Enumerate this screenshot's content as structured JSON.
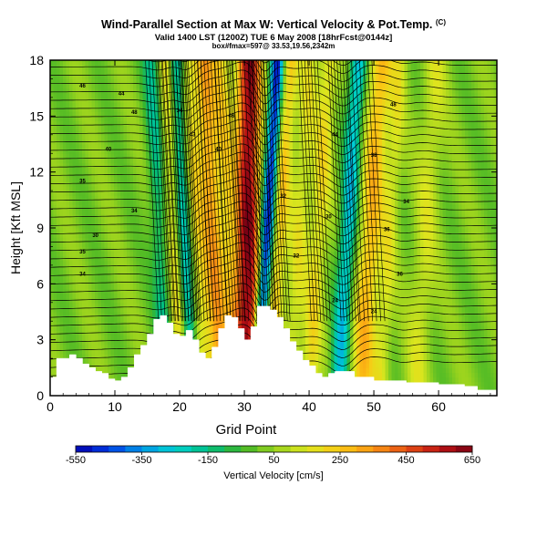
{
  "header": {
    "title": "Wind-Parallel Section at Max W: Vertical Velocity & Pot.Temp.",
    "title_mark": "(C)",
    "subtitle": "Valid 1400 LST (1200Z) TUE 6 May 2008 [18hrFcst@0144z]",
    "subtitle2": "box#fmax=597@ 33.53,19.56,2342m"
  },
  "chart_data": {
    "type": "heatmap",
    "xlabel": "Grid Point",
    "ylabel": "Height [Kft MSL]",
    "xlim": [
      0,
      69
    ],
    "ylim": [
      0,
      18
    ],
    "x_ticks": [
      "0",
      "10",
      "20",
      "30",
      "40",
      "50",
      "60"
    ],
    "y_ticks": [
      "0",
      "3",
      "6",
      "9",
      "12",
      "15",
      "18"
    ],
    "colorbar": {
      "label": "Vertical Velocity [cm/s]",
      "range": [
        -550,
        650
      ],
      "step": 50,
      "tick_labels": [
        "-550",
        "-350",
        "-150",
        "50",
        "250",
        "450",
        "650"
      ]
    },
    "terrain_height_kft": [
      [
        0,
        1.0
      ],
      [
        1,
        2.0
      ],
      [
        3,
        2.2
      ],
      [
        4,
        2.0
      ],
      [
        5,
        1.7
      ],
      [
        6,
        1.5
      ],
      [
        7,
        1.3
      ],
      [
        8,
        1.2
      ],
      [
        9,
        0.9
      ],
      [
        10,
        0.8
      ],
      [
        11,
        1.0
      ],
      [
        12,
        1.5
      ],
      [
        13,
        2.2
      ],
      [
        14,
        2.7
      ],
      [
        15,
        3.3
      ],
      [
        16,
        4.1
      ],
      [
        17,
        4.3
      ],
      [
        18,
        3.9
      ],
      [
        19,
        3.3
      ],
      [
        20,
        3.2
      ],
      [
        21,
        3.5
      ],
      [
        22,
        3.0
      ],
      [
        23,
        2.3
      ],
      [
        24,
        2.0
      ],
      [
        25,
        2.6
      ],
      [
        26,
        3.6
      ],
      [
        27,
        4.3
      ],
      [
        28,
        4.2
      ],
      [
        29,
        3.6
      ],
      [
        30,
        3.0
      ],
      [
        31,
        3.7
      ],
      [
        32,
        4.8
      ],
      [
        33,
        4.8
      ],
      [
        34,
        4.6
      ],
      [
        35,
        4.2
      ],
      [
        36,
        3.6
      ],
      [
        37,
        2.9
      ],
      [
        38,
        2.4
      ],
      [
        39,
        1.9
      ],
      [
        40,
        1.6
      ],
      [
        41,
        1.2
      ],
      [
        42,
        1.0
      ],
      [
        43,
        1.2
      ],
      [
        44,
        1.3
      ],
      [
        47,
        1.0
      ],
      [
        50,
        0.8
      ],
      [
        55,
        0.7
      ],
      [
        60,
        0.6
      ],
      [
        64,
        0.5
      ],
      [
        66,
        0.3
      ],
      [
        69,
        0.3
      ]
    ],
    "velocity_bands": [
      {
        "x": 17.5,
        "width": 1.5,
        "w": -200
      },
      {
        "x": 19.5,
        "width": 1.6,
        "w": 220
      },
      {
        "x": 21.0,
        "width": 1.2,
        "w": -320
      },
      {
        "x": 23.0,
        "width": 1.4,
        "w": 160
      },
      {
        "x": 25.5,
        "width": 1.5,
        "w": 300
      },
      {
        "x": 28.0,
        "width": 1.3,
        "w": 180
      },
      {
        "x": 30.5,
        "width": 1.8,
        "w": 600
      },
      {
        "x": 33.0,
        "width": 1.0,
        "w": -520
      },
      {
        "x": 35.0,
        "width": 1.2,
        "w": 220
      },
      {
        "x": 38.0,
        "width": 1.5,
        "w": 130
      },
      {
        "x": 41.0,
        "width": 1.4,
        "w": 170
      },
      {
        "x": 45.5,
        "width": 1.3,
        "w": -300
      },
      {
        "x": 49.0,
        "width": 1.8,
        "w": 260
      },
      {
        "x": 52.0,
        "width": 1.2,
        "w": 120
      },
      {
        "x": 57.5,
        "width": 1.8,
        "w": 110
      }
    ],
    "theta_labels": [
      {
        "x": 5,
        "y": 16.6,
        "text": "46"
      },
      {
        "x": 11,
        "y": 16.2,
        "text": "44"
      },
      {
        "x": 13,
        "y": 15.2,
        "text": "48"
      },
      {
        "x": 9,
        "y": 13.2,
        "text": "40"
      },
      {
        "x": 5,
        "y": 11.5,
        "text": "35"
      },
      {
        "x": 13,
        "y": 9.9,
        "text": "34"
      },
      {
        "x": 7,
        "y": 8.6,
        "text": "30"
      },
      {
        "x": 5,
        "y": 7.7,
        "text": "35"
      },
      {
        "x": 5,
        "y": 6.5,
        "text": "34"
      },
      {
        "x": 20,
        "y": 15.3,
        "text": "34"
      },
      {
        "x": 22,
        "y": 14.0,
        "text": "43"
      },
      {
        "x": 26,
        "y": 13.2,
        "text": "40"
      },
      {
        "x": 28,
        "y": 15.0,
        "text": "46"
      },
      {
        "x": 44,
        "y": 14.0,
        "text": "44"
      },
      {
        "x": 50,
        "y": 12.9,
        "text": "38"
      },
      {
        "x": 53,
        "y": 15.6,
        "text": "48"
      },
      {
        "x": 55,
        "y": 10.4,
        "text": "34"
      },
      {
        "x": 52,
        "y": 8.9,
        "text": "36"
      },
      {
        "x": 54,
        "y": 6.5,
        "text": "36"
      },
      {
        "x": 50,
        "y": 4.5,
        "text": "24"
      },
      {
        "x": 44,
        "y": 5.1,
        "text": "24"
      },
      {
        "x": 38,
        "y": 7.5,
        "text": "32"
      },
      {
        "x": 36,
        "y": 10.7,
        "text": "32"
      },
      {
        "x": 43,
        "y": 9.6,
        "text": "30"
      }
    ]
  }
}
